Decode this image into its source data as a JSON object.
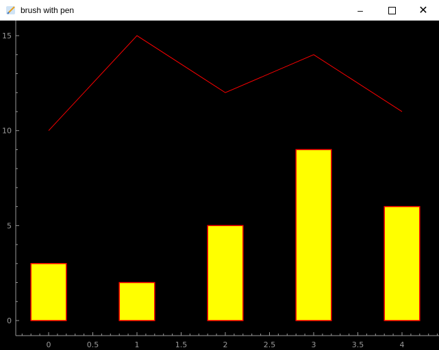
{
  "window": {
    "title": "brush with pen",
    "icon": "pen-brush-icon"
  },
  "chart_data": {
    "type": "bar+line",
    "x": [
      0,
      1,
      2,
      3,
      4
    ],
    "series": [
      {
        "type": "line",
        "values": [
          10,
          15,
          12,
          14,
          11
        ],
        "color": "#ff0000"
      },
      {
        "type": "bar",
        "values": [
          3,
          2,
          5,
          9,
          6
        ],
        "bar_width": 0.4,
        "fill": "#ffff00",
        "edge": "#ff0000"
      }
    ],
    "xlim": [
      -0.37,
      4.4
    ],
    "ylim": [
      -0.8,
      15.8
    ],
    "x_ticks": [
      "0",
      "0.5",
      "1",
      "1.5",
      "2",
      "2.5",
      "3",
      "3.5",
      "4"
    ],
    "y_ticks": [
      "0",
      "5",
      "10",
      "15"
    ],
    "background": "#000000",
    "grid": false
  }
}
